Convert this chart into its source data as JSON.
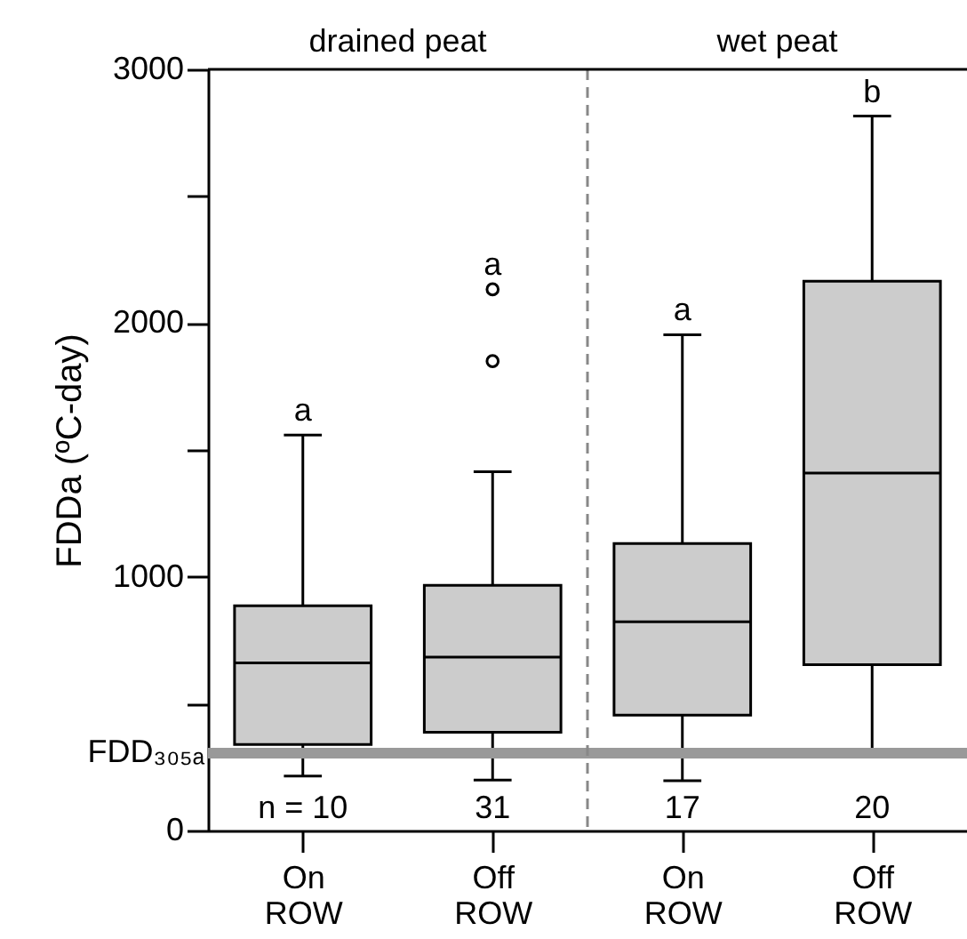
{
  "chart_data": {
    "type": "box",
    "categories": [
      "On ROW",
      "Off ROW",
      "On ROW",
      "Off ROW"
    ],
    "ylabel": "FDDa (ºC-day)",
    "ylim": [
      0,
      3000
    ],
    "yticks": [
      0,
      {
        "value": 500,
        "label": null
      },
      1000,
      {
        "value": 1500,
        "label": null
      },
      2000,
      {
        "value": 2500,
        "label": null
      },
      3000
    ],
    "grid": false,
    "series": [
      {
        "color": "#cccccc",
        "boxes": [
          {
            "low": 215,
            "q1": 339,
            "median": 661,
            "q3": 886,
            "high": 1559
          },
          {
            "low": 199,
            "q1": 387,
            "median": 683,
            "q3": 966,
            "high": 1414,
            "outliers": [
              1850,
              2133
            ]
          },
          {
            "low": 196,
            "q1": 455,
            "median": 823,
            "q3": 1131,
            "high": 1954
          },
          {
            "low": 317,
            "q1": 654,
            "median": 1409,
            "q3": 2165,
            "high": 2816
          }
        ]
      }
    ],
    "ref_lines": [
      {
        "axis": "y",
        "value": 305,
        "label": "FDD₃₀₅ₐ",
        "color": "#999999"
      }
    ],
    "annotations": [
      "drained peat",
      "wet peat",
      "n = 10",
      "31",
      "17",
      "20",
      "a",
      "a",
      "a",
      "b"
    ]
  }
}
